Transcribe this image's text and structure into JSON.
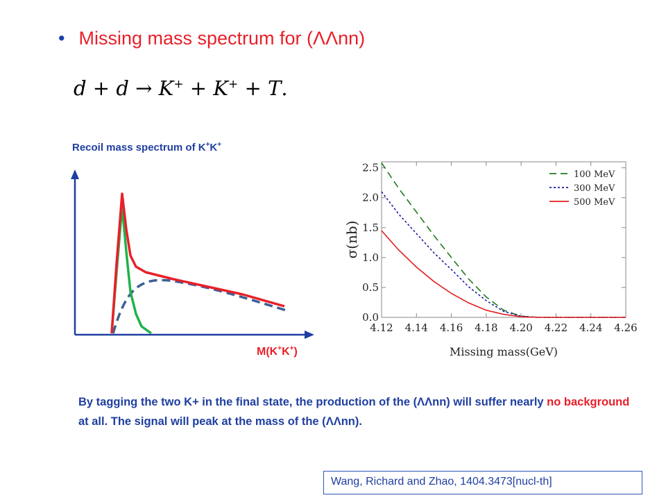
{
  "slide": {
    "bullet_glyph": "•",
    "title_prefix": "Missing mass spectrum for (",
    "title_particle": "ΛΛnn",
    "title_suffix": ")",
    "equation": {
      "d1": "d",
      "plus1": " + ",
      "d2": "d",
      "arrow": " → ",
      "k1": "K",
      "k1_sup": "+",
      "plus2": " + ",
      "k2": "K",
      "k2_sup": "+",
      "plus3": " + ",
      "t": "T",
      "dot": "."
    },
    "sketch": {
      "title_main": "Recoil mass spectrum of K",
      "title_sup1": "+",
      "title_k": "K",
      "title_sup2": "+",
      "xlabel_prefix": "M(K",
      "xlabel_sup1": "+",
      "xlabel_k": "K",
      "xlabel_sup2": "+",
      "xlabel_suffix": ")",
      "colors": {
        "axis": "#1f3fa0",
        "total": "#e8202a",
        "signal": "#1fb24a",
        "background": "#3d5f94"
      }
    },
    "description": {
      "p1": "By tagging the two K+ in the final state, the production of the (",
      "p1_particle": "ΛΛnn",
      "p2": ") will suffer nearly ",
      "highlight": "no background",
      "p3": " at all. The signal will peak at the mass of the (",
      "p3_particle": "ΛΛnn",
      "p4": ")."
    },
    "citation": "Wang, Richard and Zhao, 1404.3473[nucl-th]"
  },
  "chart_data": {
    "type": "line",
    "xlabel": "Missing mass(GeV)",
    "ylabel": "σ(nb)",
    "xlim": [
      4.12,
      4.26
    ],
    "ylim": [
      0.0,
      2.6
    ],
    "xticks": [
      "4.12",
      "4.14",
      "4.16",
      "4.18",
      "4.20",
      "4.22",
      "4.24",
      "4.26"
    ],
    "yticks": [
      "0.0",
      "0.5",
      "1.0",
      "1.5",
      "2.0",
      "2.5"
    ],
    "grid": false,
    "legend_position": "top-right",
    "series": [
      {
        "name": "100 MeV",
        "color": "#1e7a1e",
        "style": "dashed",
        "x": [
          4.12,
          4.13,
          4.14,
          4.15,
          4.16,
          4.17,
          4.18,
          4.19,
          4.2,
          4.21,
          4.22,
          4.24,
          4.26
        ],
        "y": [
          2.58,
          2.15,
          1.76,
          1.37,
          1.0,
          0.64,
          0.34,
          0.12,
          0.02,
          0.0,
          0.0,
          0.0,
          0.0
        ]
      },
      {
        "name": "300 MeV",
        "color": "#1a1aa6",
        "style": "dotted",
        "x": [
          4.12,
          4.13,
          4.14,
          4.15,
          4.16,
          4.17,
          4.18,
          4.19,
          4.2,
          4.21,
          4.22,
          4.24,
          4.26
        ],
        "y": [
          2.1,
          1.72,
          1.4,
          1.08,
          0.8,
          0.51,
          0.28,
          0.1,
          0.02,
          0.0,
          0.0,
          0.0,
          0.0
        ]
      },
      {
        "name": "500 MeV",
        "color": "#e01e1e",
        "style": "solid",
        "x": [
          4.12,
          4.13,
          4.14,
          4.15,
          4.16,
          4.17,
          4.18,
          4.19,
          4.2,
          4.21,
          4.22,
          4.24,
          4.26
        ],
        "y": [
          1.45,
          1.12,
          0.84,
          0.6,
          0.4,
          0.24,
          0.12,
          0.05,
          0.01,
          0.0,
          0.0,
          0.0,
          0.0
        ]
      }
    ]
  }
}
